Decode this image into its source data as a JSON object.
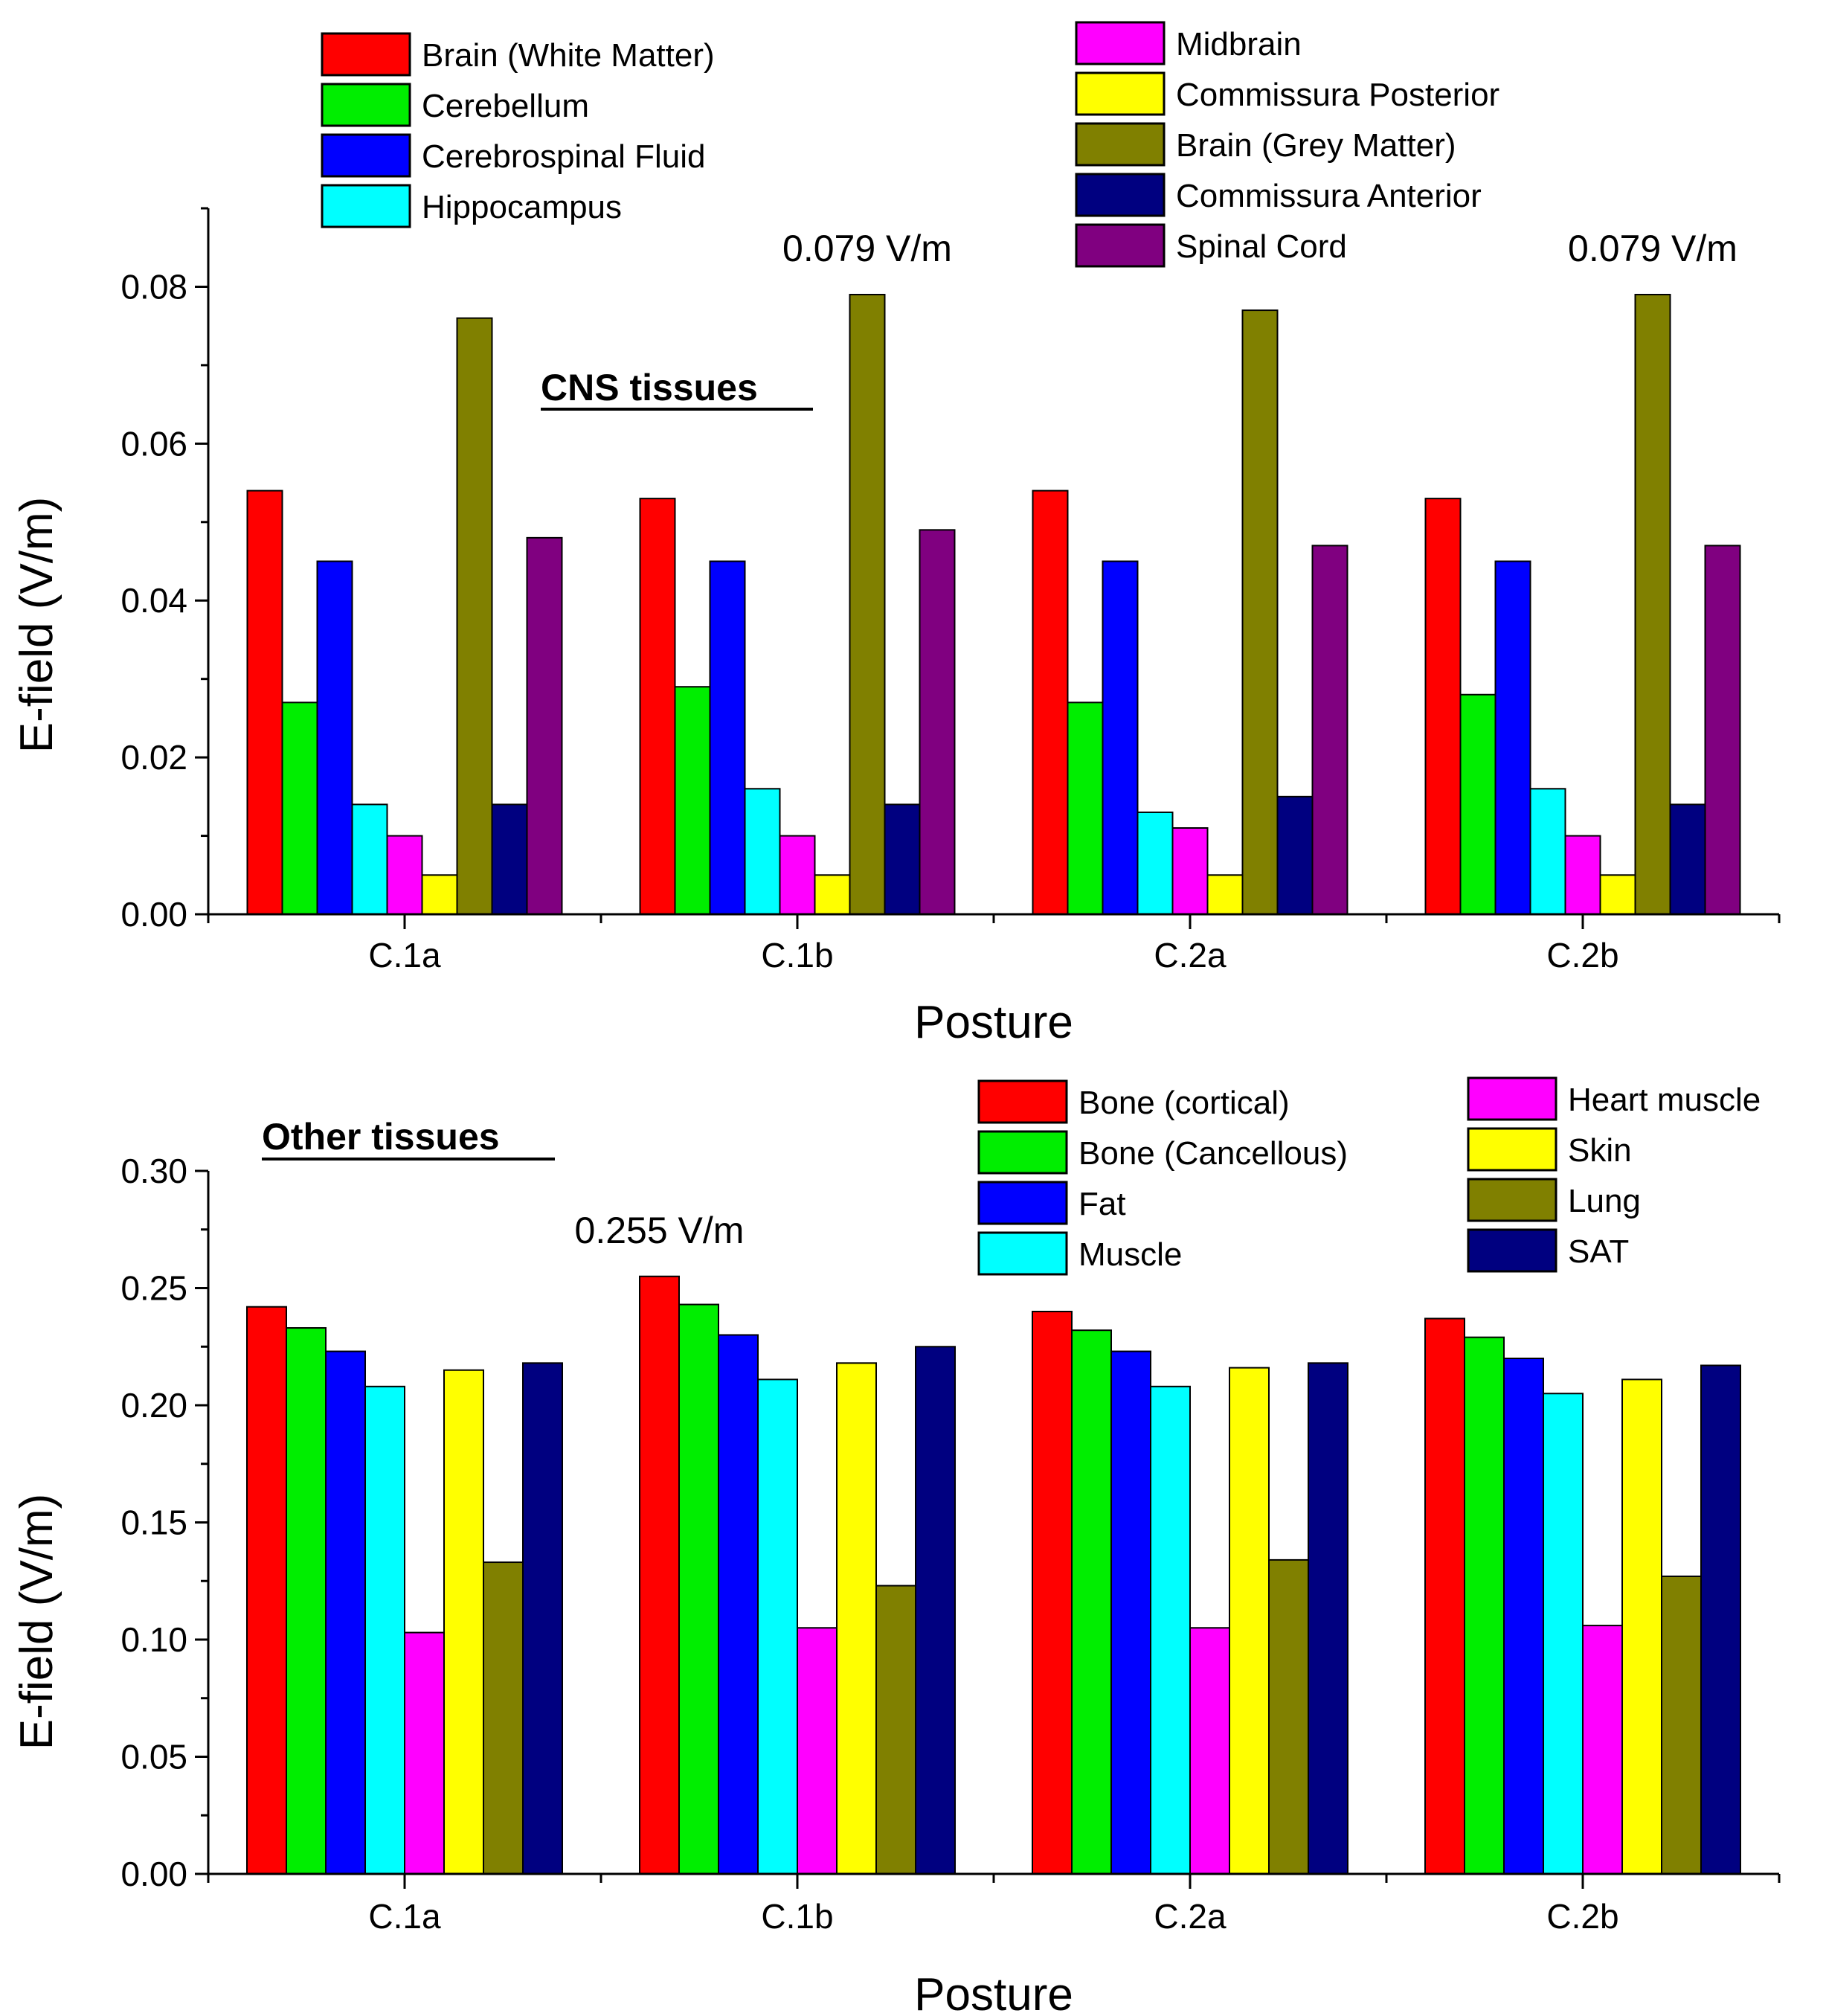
{
  "chart_data": [
    {
      "type": "bar",
      "title": "CNS tissues",
      "xlabel": "Posture",
      "ylabel": "E-field (V/m)",
      "ylim": [
        0,
        0.09
      ],
      "yticks": [
        "0.00",
        "0.02",
        "0.04",
        "0.06",
        "0.08"
      ],
      "categories": [
        "C.1a",
        "C.1b",
        "C.2a",
        "C.2b"
      ],
      "series": [
        {
          "name": "Brain (White Matter)",
          "color": "#ff0000",
          "values": [
            0.054,
            0.053,
            0.054,
            0.053
          ]
        },
        {
          "name": "Cerebellum",
          "color": "#00ee00",
          "values": [
            0.027,
            0.029,
            0.027,
            0.028
          ]
        },
        {
          "name": "Cerebrospinal Fluid",
          "color": "#0000ff",
          "values": [
            0.045,
            0.045,
            0.045,
            0.045
          ]
        },
        {
          "name": "Hippocampus",
          "color": "#00ffff",
          "values": [
            0.014,
            0.016,
            0.013,
            0.016
          ]
        },
        {
          "name": "Midbrain",
          "color": "#ff00ff",
          "values": [
            0.01,
            0.01,
            0.011,
            0.01
          ]
        },
        {
          "name": "Commissura Posterior",
          "color": "#ffff00",
          "values": [
            0.005,
            0.005,
            0.005,
            0.005
          ]
        },
        {
          "name": "Brain (Grey Matter)",
          "color": "#808000",
          "values": [
            0.076,
            0.079,
            0.077,
            0.079
          ]
        },
        {
          "name": "Commissura Anterior",
          "color": "#000080",
          "values": [
            0.014,
            0.014,
            0.015,
            0.014
          ]
        },
        {
          "name": "Spinal Cord",
          "color": "#800080",
          "values": [
            0.048,
            0.049,
            0.047,
            0.047
          ]
        }
      ],
      "annotations": [
        {
          "text": "0.079 V/m",
          "category": "C.1b",
          "series": "Brain (Grey Matter)"
        },
        {
          "text": "0.079 V/m",
          "category": "C.2b",
          "series": "Brain (Grey Matter)"
        }
      ],
      "legend_columns": [
        [
          0,
          1,
          2,
          3
        ],
        [
          4,
          5,
          6,
          7,
          8
        ]
      ]
    },
    {
      "type": "bar",
      "title": "Other tissues",
      "xlabel": "Posture",
      "ylabel": "E-field (V/m)",
      "ylim": [
        0,
        0.3
      ],
      "yticks": [
        "0.00",
        "0.05",
        "0.10",
        "0.15",
        "0.20",
        "0.25",
        "0.30"
      ],
      "categories": [
        "C.1a",
        "C.1b",
        "C.2a",
        "C.2b"
      ],
      "series": [
        {
          "name": "Bone (cortical)",
          "color": "#ff0000",
          "values": [
            0.242,
            0.255,
            0.24,
            0.237
          ]
        },
        {
          "name": "Bone (Cancellous)",
          "color": "#00ee00",
          "values": [
            0.233,
            0.243,
            0.232,
            0.229
          ]
        },
        {
          "name": "Fat",
          "color": "#0000ff",
          "values": [
            0.223,
            0.23,
            0.223,
            0.22
          ]
        },
        {
          "name": "Muscle",
          "color": "#00ffff",
          "values": [
            0.208,
            0.211,
            0.208,
            0.205
          ]
        },
        {
          "name": "Heart muscle",
          "color": "#ff00ff",
          "values": [
            0.103,
            0.105,
            0.105,
            0.106
          ]
        },
        {
          "name": "Skin",
          "color": "#ffff00",
          "values": [
            0.215,
            0.218,
            0.216,
            0.211
          ]
        },
        {
          "name": "Lung",
          "color": "#808000",
          "values": [
            0.133,
            0.123,
            0.134,
            0.127
          ]
        },
        {
          "name": "SAT",
          "color": "#000080",
          "values": [
            0.218,
            0.225,
            0.218,
            0.217
          ]
        }
      ],
      "annotations": [
        {
          "text": "0.255 V/m",
          "category": "C.1b",
          "series": "Bone (cortical)"
        }
      ],
      "legend_columns": [
        [
          0,
          1,
          2,
          3
        ],
        [
          4,
          5,
          6,
          7
        ]
      ]
    }
  ]
}
